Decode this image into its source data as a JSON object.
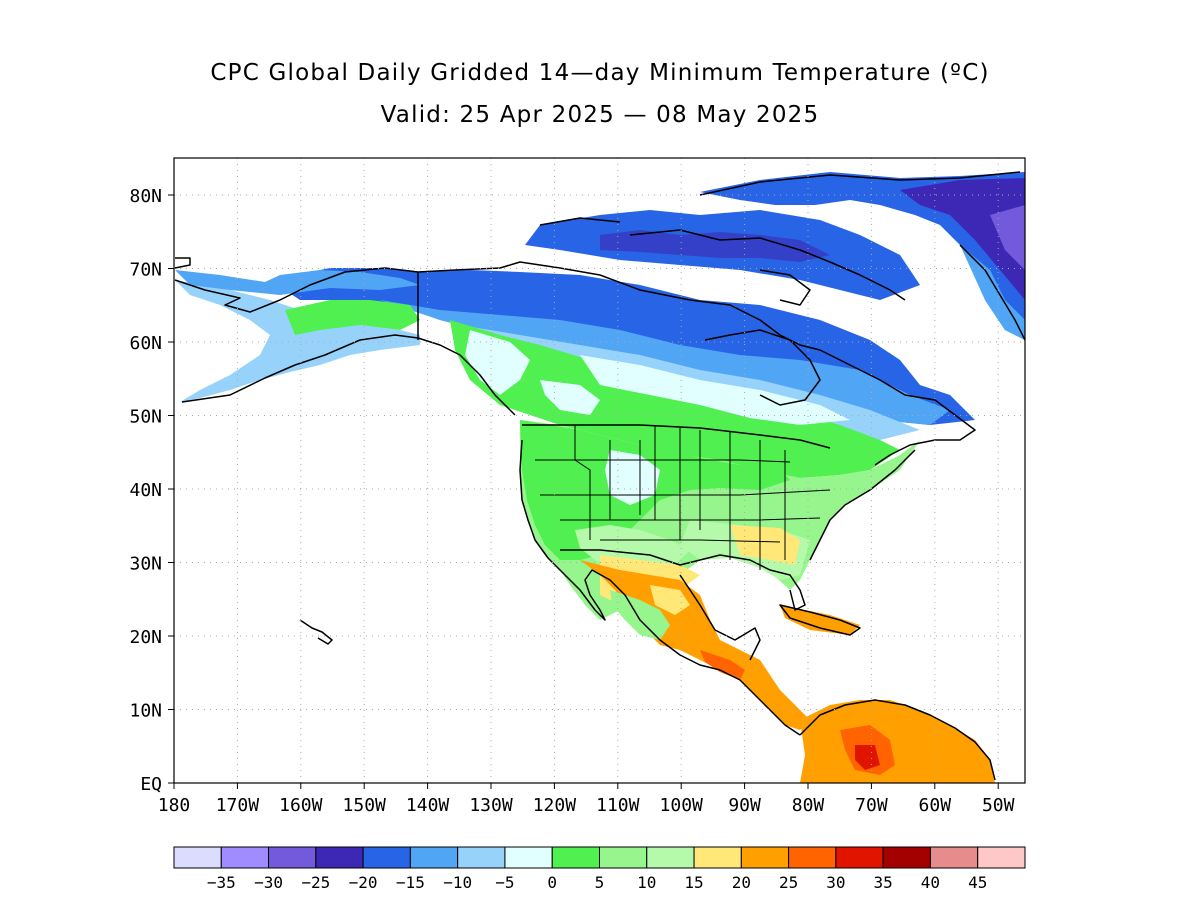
{
  "title": "CPC Global Daily Gridded 14—day Minimum Temperature (ºC)",
  "subtitle": "Valid: 25 Apr 2025 — 08 May 2025",
  "map": {
    "region": "North America",
    "lat_labels": [
      "80N",
      "70N",
      "60N",
      "50N",
      "40N",
      "30N",
      "20N",
      "10N",
      "EQ"
    ],
    "lon_labels": [
      "180",
      "170W",
      "160W",
      "150W",
      "140W",
      "130W",
      "120W",
      "110W",
      "100W",
      "90W",
      "80W",
      "70W",
      "60W",
      "50W"
    ],
    "grid": "dotted"
  },
  "legend": {
    "labels": [
      "-35",
      "-30",
      "-25",
      "-20",
      "-15",
      "-10",
      "-5",
      "0",
      "5",
      "10",
      "15",
      "20",
      "25",
      "30",
      "35",
      "40",
      "45"
    ],
    "colors": [
      "#dcdcff",
      "#a08cff",
      "#735adc",
      "#3c28b4",
      "#2864e6",
      "#50a5f5",
      "#96d2fa",
      "#e1ffff",
      "#50f050",
      "#96f58c",
      "#b4faaa",
      "#ffe878",
      "#ffa000",
      "#ff6400",
      "#e11400",
      "#a50000",
      "#e68c8c",
      "#ffc8c8"
    ]
  }
}
